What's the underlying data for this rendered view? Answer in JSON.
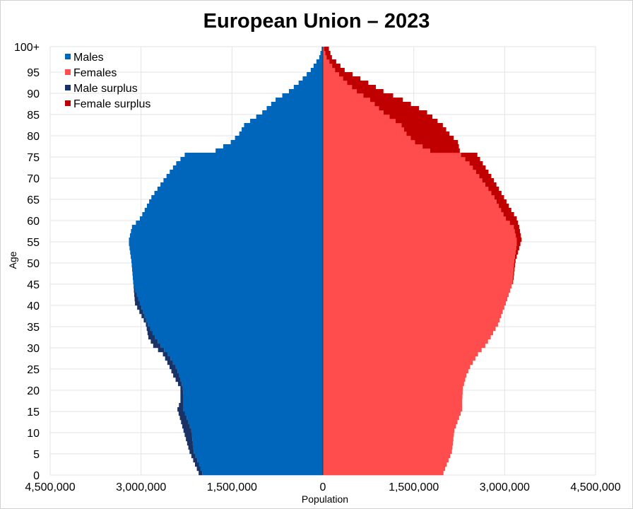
{
  "chart_data": {
    "type": "bar",
    "orientation": "horizontal-population-pyramid",
    "title": "European Union – 2023",
    "xlabel": "Population",
    "ylabel": "Age",
    "xlim": [
      -4500000,
      4500000
    ],
    "ylim": [
      0,
      100
    ],
    "x_ticks": [
      -4500000,
      -3000000,
      -1500000,
      0,
      1500000,
      3000000,
      4500000
    ],
    "x_tick_labels": [
      "4,500,000",
      "3,000,000",
      "1,500,000",
      "0",
      "1,500,000",
      "3,000,000",
      "4,500,000"
    ],
    "y_ticks": [
      0,
      5,
      10,
      15,
      20,
      25,
      30,
      35,
      40,
      45,
      50,
      55,
      60,
      65,
      70,
      75,
      80,
      85,
      90,
      95,
      100
    ],
    "y_tick_labels": [
      "0",
      "5",
      "10",
      "15",
      "20",
      "25",
      "30",
      "35",
      "40",
      "45",
      "50",
      "55",
      "60",
      "65",
      "70",
      "75",
      "80",
      "85",
      "90",
      "95",
      "100+"
    ],
    "grid": true,
    "legend_position": "top-left",
    "colors": {
      "male": "#0066bb",
      "female": "#ff4d4d",
      "male_surplus": "#1a3366",
      "female_surplus": "#c00000"
    },
    "series": [
      {
        "name": "Males",
        "key": "male"
      },
      {
        "name": "Females",
        "key": "female"
      },
      {
        "name": "Male surplus",
        "key": "male_surplus"
      },
      {
        "name": "Female surplus",
        "key": "female_surplus"
      }
    ],
    "anchors": {
      "ages": [
        0,
        5,
        10,
        15,
        17,
        20,
        23,
        25,
        28,
        30,
        32,
        35,
        40,
        45,
        50,
        54,
        55,
        58,
        60,
        62,
        65,
        70,
        73,
        75,
        76,
        78,
        80,
        82,
        85,
        88,
        90,
        92,
        95,
        98,
        100
      ],
      "males": [
        2050000,
        2200000,
        2300000,
        2400000,
        2350000,
        2350000,
        2470000,
        2530000,
        2640000,
        2800000,
        2880000,
        2920000,
        3100000,
        3130000,
        3160000,
        3200000,
        3200000,
        3150000,
        3020000,
        2940000,
        2830000,
        2580000,
        2420000,
        2280000,
        1770000,
        1520000,
        1380000,
        1300000,
        1000000,
        780000,
        560000,
        400000,
        200000,
        60000,
        20000
      ],
      "females": [
        1990000,
        2130000,
        2170000,
        2300000,
        2300000,
        2310000,
        2370000,
        2430000,
        2560000,
        2680000,
        2770000,
        2890000,
        3020000,
        3140000,
        3180000,
        3260000,
        3280000,
        3240000,
        3200000,
        3110000,
        2990000,
        2780000,
        2640000,
        2550000,
        2260000,
        2230000,
        2090000,
        1980000,
        1720000,
        1320000,
        1000000,
        750000,
        360000,
        150000,
        100000
      ]
    }
  }
}
